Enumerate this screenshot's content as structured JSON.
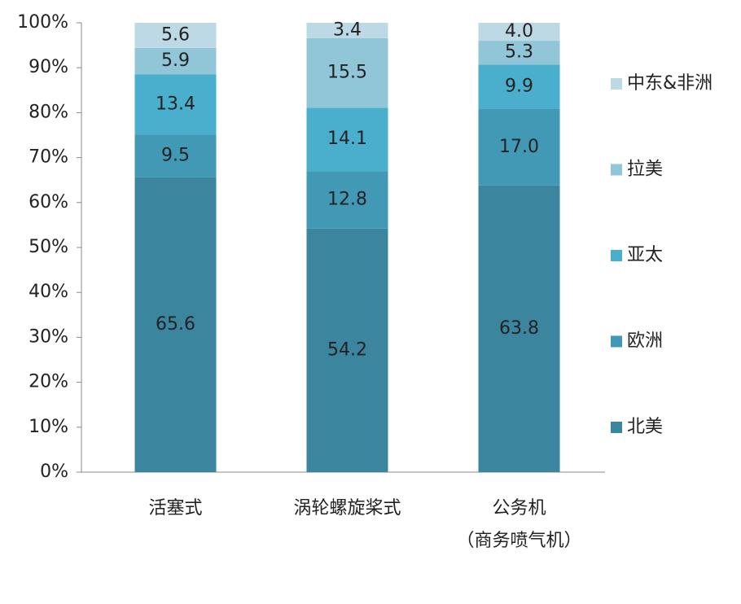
{
  "chart_data": {
    "type": "stacked_bar",
    "categories": [
      "活塞式",
      "涡轮螺旋桨式",
      "公务机\n（商务喷气机）"
    ],
    "series": [
      {
        "name": "北美",
        "color": "#3b859e",
        "values": [
          65.6,
          54.2,
          63.8
        ],
        "value_labels": [
          "65.6",
          "54.2",
          "63.8"
        ]
      },
      {
        "name": "欧洲",
        "color": "#4199b6",
        "values": [
          9.5,
          12.8,
          17.0
        ],
        "value_labels": [
          "9.5",
          "12.8",
          "17.0"
        ]
      },
      {
        "name": "亚太",
        "color": "#4aafcc",
        "values": [
          13.4,
          14.1,
          9.9
        ],
        "value_labels": [
          "13.4",
          "14.1",
          "9.9"
        ]
      },
      {
        "name": "拉美",
        "color": "#91c5d8",
        "values": [
          5.9,
          15.5,
          5.3
        ],
        "value_labels": [
          "5.9",
          "15.5",
          "5.3"
        ]
      },
      {
        "name": "中东&非洲",
        "color": "#bdd9e5",
        "values": [
          5.6,
          3.4,
          4.0
        ],
        "value_labels": [
          "5.6",
          "3.4",
          "4.0"
        ]
      }
    ],
    "ylim": [
      0,
      100
    ],
    "yticks": [
      {
        "value": 0,
        "label": "0%"
      },
      {
        "value": 10,
        "label": "10%"
      },
      {
        "value": 20,
        "label": "20%"
      },
      {
        "value": 30,
        "label": "30%"
      },
      {
        "value": 40,
        "label": "40%"
      },
      {
        "value": 50,
        "label": "50%"
      },
      {
        "value": 60,
        "label": "60%"
      },
      {
        "value": 70,
        "label": "70%"
      },
      {
        "value": 80,
        "label": "80%"
      },
      {
        "value": 90,
        "label": "90%"
      },
      {
        "value": 100,
        "label": "100%"
      }
    ],
    "legend": "right"
  }
}
